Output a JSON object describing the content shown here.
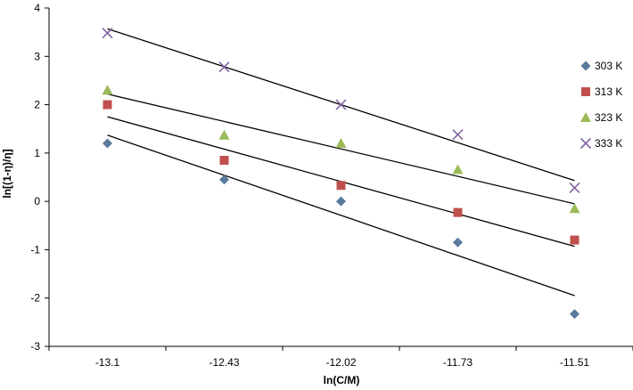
{
  "chart_data": {
    "type": "scatter",
    "title": "",
    "xlabel": "ln(C/M)",
    "ylabel": "ln[(1-η)/η]",
    "categories": [
      "-13.1",
      "-12.43",
      "-12.02",
      "-11.73",
      "-11.51"
    ],
    "ylim": [
      -3,
      4
    ],
    "yticks": [
      "-3",
      "-2",
      "-1",
      "0",
      "1",
      "2",
      "3",
      "4"
    ],
    "grid": false,
    "legend_position": "right",
    "series": [
      {
        "name": "303 K",
        "marker": "diamond",
        "color": "#5B7A9B",
        "values": [
          1.2,
          0.45,
          0.0,
          -0.85,
          -2.33
        ],
        "fit": [
          1.37,
          -1.95
        ]
      },
      {
        "name": "313 K",
        "marker": "square",
        "color": "#C0504D",
        "values": [
          2.0,
          0.85,
          0.33,
          -0.23,
          -0.8
        ],
        "fit": [
          1.75,
          -0.93
        ]
      },
      {
        "name": "323 K",
        "marker": "triangle",
        "color": "#9BBB59",
        "values": [
          2.3,
          1.37,
          1.2,
          0.66,
          -0.15
        ],
        "fit": [
          2.22,
          -0.05
        ]
      },
      {
        "name": "333 K",
        "marker": "x",
        "color": "#8064A2",
        "values": [
          3.48,
          2.78,
          2.0,
          1.38,
          0.28
        ],
        "fit": [
          3.57,
          0.43
        ]
      }
    ]
  }
}
